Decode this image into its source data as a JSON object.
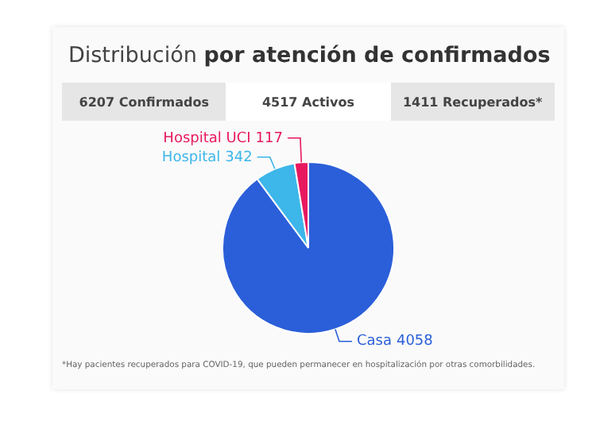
{
  "chart_data": {
    "type": "pie",
    "title": "Distribución por atención de confirmados",
    "categories": [
      "Casa",
      "Hospital",
      "Hospital UCI"
    ],
    "values": [
      4058,
      342,
      117
    ],
    "colors": [
      "#2b5fd9",
      "#3db6ea",
      "#e8185f"
    ],
    "data_labels": true,
    "legend": false,
    "annotations": [
      "6207 Confirmados",
      "4517 Activos",
      "1411 Recuperados*",
      "*Hay pacientes recuperados para COVID-19, que pueden permanecer en hospitalización por otras comorbilidades."
    ]
  }
}
